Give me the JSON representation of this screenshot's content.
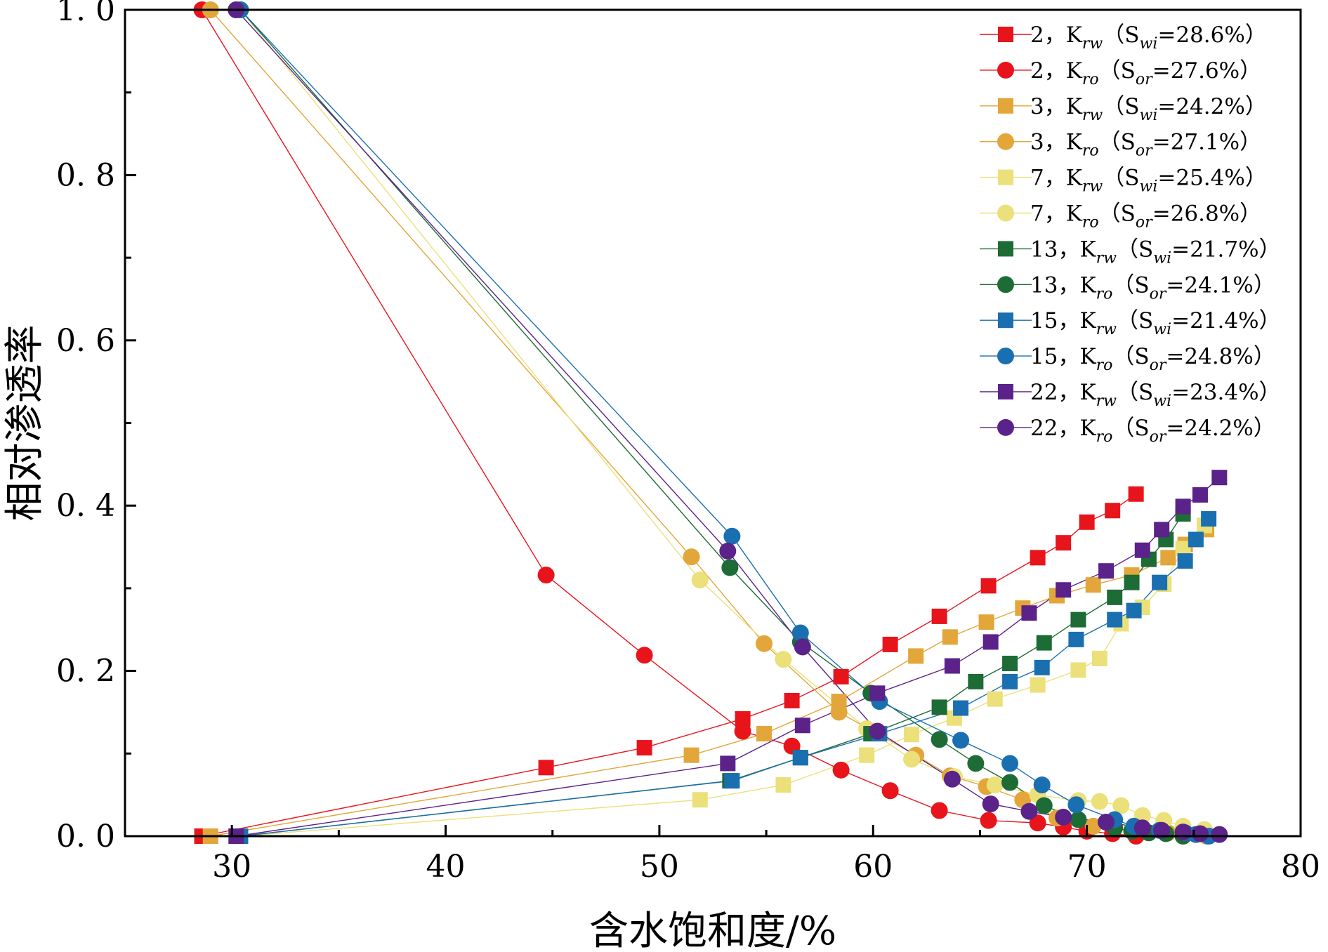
{
  "chart_data": {
    "type": "line",
    "xlabel": "含水饱和度/%",
    "ylabel": "相对渗透率",
    "xlim": [
      25,
      80
    ],
    "ylim": [
      0,
      1
    ],
    "xticks": [
      30,
      40,
      50,
      60,
      70,
      80
    ],
    "xtick_labels": [
      "30",
      "40",
      "50",
      "60",
      "70",
      "80"
    ],
    "yticks": [
      0,
      0.2,
      0.4,
      0.6,
      0.8,
      1.0
    ],
    "ytick_labels": [
      "0. 0",
      "0. 2",
      "0. 4",
      "0. 6",
      "0. 8",
      "1. 0"
    ],
    "grid": false,
    "legend_position": "top-right",
    "series": [
      {
        "name": "2，Krw（Swi=28.6%）",
        "legend": {
          "id": "2",
          "k": "K",
          "ksub": "rw",
          "s": "S",
          "ssub": "wi",
          "val": "=28.6%"
        },
        "color": "#e8141c",
        "marker": "square",
        "x": [
          28.6,
          44.7,
          49.3,
          53.9,
          56.2,
          58.5,
          60.8,
          63.1,
          65.4,
          67.7,
          68.9,
          70.0,
          71.2,
          72.3
        ],
        "y": [
          0.0,
          0.083,
          0.107,
          0.142,
          0.164,
          0.193,
          0.232,
          0.266,
          0.303,
          0.337,
          0.355,
          0.38,
          0.394,
          0.414
        ]
      },
      {
        "name": "2，Kro（Sor=27.6%）",
        "legend": {
          "id": "2",
          "k": "K",
          "ksub": "ro",
          "s": "S",
          "ssub": "or",
          "val": "=27.6%"
        },
        "color": "#e8141c",
        "marker": "circle",
        "x": [
          28.6,
          44.7,
          49.3,
          53.9,
          56.2,
          58.5,
          60.8,
          63.1,
          65.4,
          67.7,
          68.9,
          70.0,
          71.2,
          72.3
        ],
        "y": [
          1.0,
          0.316,
          0.219,
          0.127,
          0.109,
          0.08,
          0.055,
          0.031,
          0.019,
          0.016,
          0.011,
          0.006,
          0.003,
          0.0
        ]
      },
      {
        "name": "3，Krw（Swi=24.2%）",
        "legend": {
          "id": "3",
          "k": "K",
          "ksub": "rw",
          "s": "S",
          "ssub": "wi",
          "val": "=24.2%"
        },
        "color": "#e2a63a",
        "marker": "square",
        "x": [
          29.0,
          51.5,
          54.9,
          58.4,
          62.0,
          63.6,
          65.3,
          67.0,
          68.6,
          70.3,
          72.1,
          73.8,
          74.6,
          75.6
        ],
        "y": [
          0.0,
          0.098,
          0.124,
          0.163,
          0.218,
          0.241,
          0.259,
          0.276,
          0.291,
          0.304,
          0.316,
          0.337,
          0.353,
          0.371
        ]
      },
      {
        "name": "3，Kro（Sor=27.1%）",
        "legend": {
          "id": "3",
          "k": "K",
          "ksub": "ro",
          "s": "S",
          "ssub": "or",
          "val": "=27.1%"
        },
        "color": "#e2a63a",
        "marker": "circle",
        "x": [
          29.0,
          51.5,
          54.9,
          58.4,
          62.0,
          63.6,
          65.3,
          67.0,
          68.6,
          70.3,
          72.1,
          73.8,
          74.6,
          75.6
        ],
        "y": [
          1.0,
          0.338,
          0.233,
          0.15,
          0.098,
          0.073,
          0.06,
          0.044,
          0.022,
          0.012,
          0.007,
          0.004,
          0.002,
          0.0
        ]
      },
      {
        "name": "7，Krw（Swi=25.4%）",
        "legend": {
          "id": "7",
          "k": "K",
          "ksub": "rw",
          "s": "S",
          "ssub": "wi",
          "val": "=25.4%"
        },
        "color": "#ebe07a",
        "marker": "square",
        "x": [
          30.4,
          51.9,
          55.8,
          59.7,
          61.8,
          63.8,
          65.7,
          67.7,
          69.6,
          70.6,
          71.6,
          72.6,
          73.6,
          74.5,
          75.5
        ],
        "y": [
          0.0,
          0.044,
          0.062,
          0.098,
          0.123,
          0.143,
          0.166,
          0.183,
          0.201,
          0.215,
          0.257,
          0.277,
          0.305,
          0.348,
          0.376
        ]
      },
      {
        "name": "7，Kro（Sor=26.8%）",
        "legend": {
          "id": "7",
          "k": "K",
          "ksub": "ro",
          "s": "S",
          "ssub": "or",
          "val": "=26.8%"
        },
        "color": "#ebe07a",
        "marker": "circle",
        "x": [
          30.4,
          51.9,
          55.8,
          59.7,
          61.8,
          63.8,
          65.7,
          67.7,
          69.6,
          70.6,
          71.6,
          72.6,
          73.6,
          74.5,
          75.5
        ],
        "y": [
          1.0,
          0.31,
          0.214,
          0.13,
          0.093,
          0.072,
          0.062,
          0.05,
          0.043,
          0.042,
          0.037,
          0.025,
          0.019,
          0.012,
          0.008
        ]
      },
      {
        "name": "13，Krw（Swi=21.7%）",
        "legend": {
          "id": "13",
          "k": "K",
          "ksub": "rw",
          "s": "S",
          "ssub": "wi",
          "val": "=21.7%"
        },
        "color": "#1d6b35",
        "marker": "square",
        "x": [
          30.4,
          53.3,
          56.6,
          59.9,
          63.1,
          64.8,
          66.4,
          68.0,
          69.6,
          71.3,
          72.1,
          72.9,
          73.7,
          74.5
        ],
        "y": [
          0.0,
          0.067,
          0.095,
          0.124,
          0.156,
          0.187,
          0.209,
          0.234,
          0.262,
          0.289,
          0.307,
          0.335,
          0.359,
          0.39
        ]
      },
      {
        "name": "13，Kro（Sor=24.1%）",
        "legend": {
          "id": "13",
          "k": "K",
          "ksub": "ro",
          "s": "S",
          "ssub": "or",
          "val": "=24.1%"
        },
        "color": "#1d6b35",
        "marker": "circle",
        "x": [
          30.4,
          53.3,
          56.6,
          59.9,
          63.1,
          64.8,
          66.4,
          68.0,
          69.6,
          71.3,
          72.1,
          72.9,
          73.7,
          74.5
        ],
        "y": [
          1.0,
          0.325,
          0.235,
          0.173,
          0.117,
          0.088,
          0.065,
          0.037,
          0.02,
          0.01,
          0.006,
          0.004,
          0.003,
          0.0
        ]
      },
      {
        "name": "15，Krw（Swi=21.4%）",
        "legend": {
          "id": "15",
          "k": "K",
          "ksub": "rw",
          "s": "S",
          "ssub": "wi",
          "val": "=21.4%"
        },
        "color": "#1a6fb0",
        "marker": "square",
        "x": [
          30.4,
          53.4,
          56.6,
          60.3,
          64.1,
          66.4,
          67.9,
          69.5,
          71.3,
          72.2,
          73.4,
          74.6,
          75.1,
          75.7
        ],
        "y": [
          0.0,
          0.067,
          0.095,
          0.124,
          0.155,
          0.187,
          0.204,
          0.238,
          0.262,
          0.273,
          0.307,
          0.333,
          0.359,
          0.384
        ]
      },
      {
        "name": "15，Kro（Sor=24.8%）",
        "legend": {
          "id": "15",
          "k": "K",
          "ksub": "ro",
          "s": "S",
          "ssub": "or",
          "val": "=24.8%"
        },
        "color": "#1a6fb0",
        "marker": "circle",
        "x": [
          30.4,
          53.4,
          56.6,
          60.3,
          64.1,
          66.4,
          67.9,
          69.5,
          71.3,
          72.2,
          73.4,
          74.6,
          75.1,
          75.7
        ],
        "y": [
          1.0,
          0.363,
          0.246,
          0.163,
          0.116,
          0.088,
          0.062,
          0.038,
          0.02,
          0.012,
          0.007,
          0.004,
          0.002,
          0.0
        ]
      },
      {
        "name": "22，Krw（Swi=23.4%）",
        "legend": {
          "id": "22",
          "k": "K",
          "ksub": "rw",
          "s": "S",
          "ssub": "wi",
          "val": "=23.4%"
        },
        "color": "#5b2289",
        "marker": "square",
        "x": [
          30.2,
          53.2,
          56.7,
          60.2,
          63.7,
          65.5,
          67.3,
          68.9,
          70.9,
          72.6,
          73.5,
          74.5,
          75.3,
          76.2
        ],
        "y": [
          0.0,
          0.088,
          0.134,
          0.173,
          0.206,
          0.235,
          0.27,
          0.298,
          0.321,
          0.346,
          0.371,
          0.399,
          0.413,
          0.434
        ]
      },
      {
        "name": "22，Kro（Sor=24.2%）",
        "legend": {
          "id": "22",
          "k": "K",
          "ksub": "ro",
          "s": "S",
          "ssub": "or",
          "val": "=24.2%"
        },
        "color": "#5b2289",
        "marker": "circle",
        "x": [
          30.2,
          53.2,
          56.7,
          60.2,
          63.7,
          65.5,
          67.3,
          68.9,
          70.9,
          72.6,
          73.5,
          74.5,
          75.3,
          76.2
        ],
        "y": [
          1.0,
          0.345,
          0.229,
          0.127,
          0.069,
          0.039,
          0.03,
          0.023,
          0.017,
          0.01,
          0.007,
          0.005,
          0.003,
          0.002
        ]
      }
    ]
  }
}
